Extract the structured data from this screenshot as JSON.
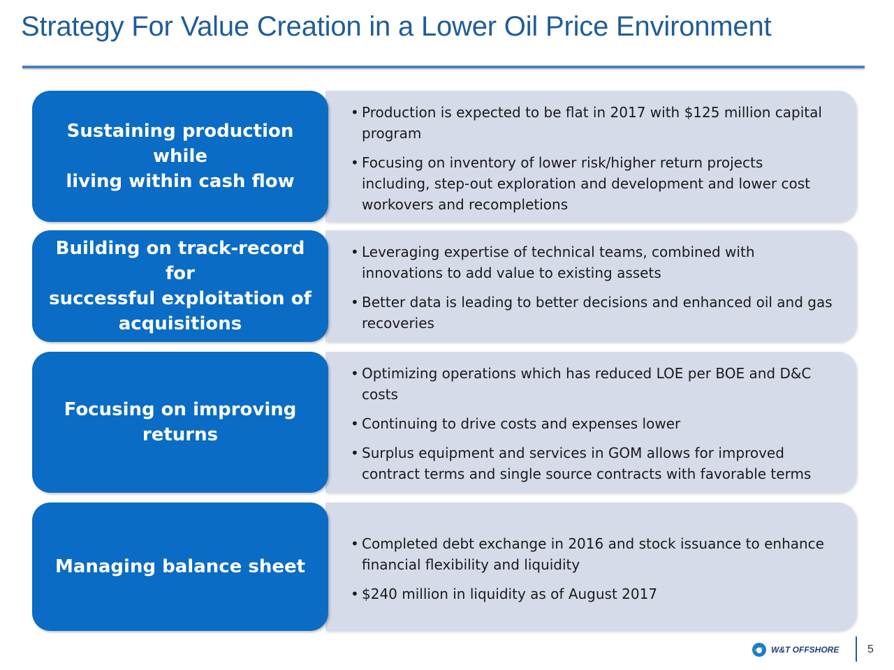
{
  "title": "Strategy For Value Creation in a Lower Oil Price Environment",
  "rows": [
    {
      "label": "Sustaining production while\nliving within cash flow",
      "bullets": [
        "Production is expected to be flat in 2017 with $125 million capital program",
        "Focusing on inventory of lower risk/higher return projects including, step-out exploration and development and lower cost workovers and recompletions"
      ]
    },
    {
      "label": "Building on track-record for\nsuccessful exploitation of\nacquisitions",
      "bullets": [
        "Leveraging expertise of technical teams, combined with innovations to add value to existing assets",
        "Better data is leading to better decisions and enhanced oil and gas recoveries"
      ]
    },
    {
      "label": "Focusing on improving\nreturns",
      "bullets": [
        "Optimizing operations which has reduced LOE per BOE and D&C costs",
        "Continuing to drive costs and expenses lower",
        "Surplus equipment and services in GOM allows for improved contract terms and single source contracts with favorable terms"
      ]
    },
    {
      "label": "Managing balance sheet",
      "bullets": [
        "Completed debt exchange in 2016 and stock issuance to enhance financial flexibility and liquidity",
        "$240 million in liquidity as of August 2017"
      ]
    }
  ],
  "footer": {
    "logo_text": "W&T OFFSHORE",
    "page_number": "5"
  },
  "colors": {
    "title": "#1f5c99",
    "label_box": "#0a6cc4",
    "content_box": "#d6dbea"
  },
  "icons": {
    "logo": "w-and-t-offshore-logo-icon"
  }
}
